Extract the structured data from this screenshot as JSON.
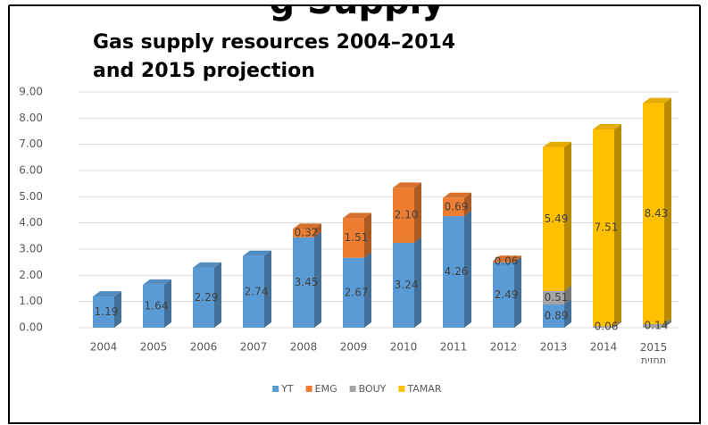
{
  "heading": "g Supply",
  "chart_data": {
    "type": "bar3d_stacked",
    "title": [
      "Gas supply resources 2004–2014",
      "and 2015 projection"
    ],
    "categories": [
      "2004",
      "2005",
      "2006",
      "2007",
      "2008",
      "2009",
      "2010",
      "2011",
      "2012",
      "2013",
      "2014",
      "2015 תחזית"
    ],
    "series": [
      {
        "name": "YT",
        "color": "#5b9bd5",
        "values": [
          1.19,
          1.64,
          2.29,
          2.74,
          3.45,
          2.67,
          3.24,
          4.26,
          2.49,
          0.89,
          null,
          null
        ],
        "value_labels": [
          "1.19",
          "1.64",
          "2.29",
          "2.74",
          "3.45",
          "2.67",
          "3.24",
          "4.26",
          "2.49",
          "0.89",
          null,
          null
        ]
      },
      {
        "name": "EMG",
        "color": "#ed7d31",
        "values": [
          null,
          null,
          null,
          null,
          0.32,
          1.51,
          2.1,
          0.69,
          0.06,
          null,
          null,
          null
        ],
        "value_labels": [
          null,
          null,
          null,
          null,
          "0.32",
          "1.51",
          "2.10",
          "0.69",
          "0.06",
          null,
          null,
          null
        ]
      },
      {
        "name": "BOUY",
        "color": "#a5a5a5",
        "values": [
          null,
          null,
          null,
          null,
          null,
          null,
          null,
          null,
          null,
          0.51,
          0.06,
          0.14
        ],
        "value_labels": [
          null,
          null,
          null,
          null,
          null,
          null,
          null,
          null,
          null,
          "0.51",
          "0.06",
          "0.14"
        ]
      },
      {
        "name": "TAMAR",
        "color": "#ffc000",
        "values": [
          null,
          null,
          null,
          null,
          null,
          null,
          null,
          null,
          null,
          5.49,
          7.51,
          8.43
        ],
        "value_labels": [
          null,
          null,
          null,
          null,
          null,
          null,
          null,
          null,
          null,
          "5.49",
          "7.51",
          "8.43"
        ]
      }
    ],
    "ylim": [
      0,
      9
    ],
    "yticks": [
      {
        "value": 0,
        "label": "0.00"
      },
      {
        "value": 1,
        "label": "1.00"
      },
      {
        "value": 2,
        "label": "2.00"
      },
      {
        "value": 3,
        "label": "3.00"
      },
      {
        "value": 4,
        "label": "4.00"
      },
      {
        "value": 5,
        "label": "5.00"
      },
      {
        "value": 6,
        "label": "6.00"
      },
      {
        "value": 7,
        "label": "7.00"
      },
      {
        "value": 8,
        "label": "8.00"
      },
      {
        "value": 9,
        "label": "9.00"
      }
    ],
    "grid": true,
    "legend": "bottom"
  }
}
